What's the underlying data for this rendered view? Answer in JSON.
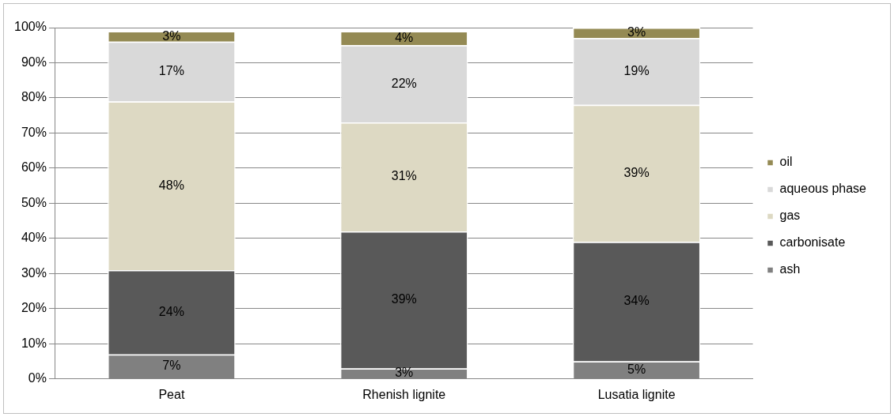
{
  "chart_data": {
    "type": "bar",
    "stacked": true,
    "categories": [
      "Peat",
      "Rhenish lignite",
      "Lusatia lignite"
    ],
    "series": [
      {
        "name": "ash",
        "color": "#808080",
        "values": [
          7,
          3,
          5
        ]
      },
      {
        "name": "carbonisate",
        "color": "#595959",
        "values": [
          24,
          39,
          34
        ]
      },
      {
        "name": "gas",
        "color": "#ddd9c3",
        "values": [
          48,
          31,
          39
        ]
      },
      {
        "name": "aqueous phase",
        "color": "#d9d9d9",
        "values": [
          17,
          22,
          19
        ]
      },
      {
        "name": "oil",
        "color": "#948a54",
        "values": [
          3,
          4,
          3
        ]
      }
    ],
    "ylim": [
      0,
      100
    ],
    "yticks": [
      {
        "value": 0,
        "label": "0%"
      },
      {
        "value": 10,
        "label": "10%"
      },
      {
        "value": 20,
        "label": "20%"
      },
      {
        "value": 30,
        "label": "30%"
      },
      {
        "value": 40,
        "label": "40%"
      },
      {
        "value": 50,
        "label": "50%"
      },
      {
        "value": 60,
        "label": "60%"
      },
      {
        "value": 70,
        "label": "70%"
      },
      {
        "value": 80,
        "label": "80%"
      },
      {
        "value": 90,
        "label": "90%"
      },
      {
        "value": 100,
        "label": "100%"
      }
    ],
    "value_labels": [
      [
        "7%",
        "3%",
        "5%"
      ],
      [
        "24%",
        "39%",
        "34%"
      ],
      [
        "48%",
        "31%",
        "39%"
      ],
      [
        "17%",
        "22%",
        "19%"
      ],
      [
        "3%",
        "4%",
        "3%"
      ]
    ],
    "grid": "y",
    "legend": "right"
  }
}
